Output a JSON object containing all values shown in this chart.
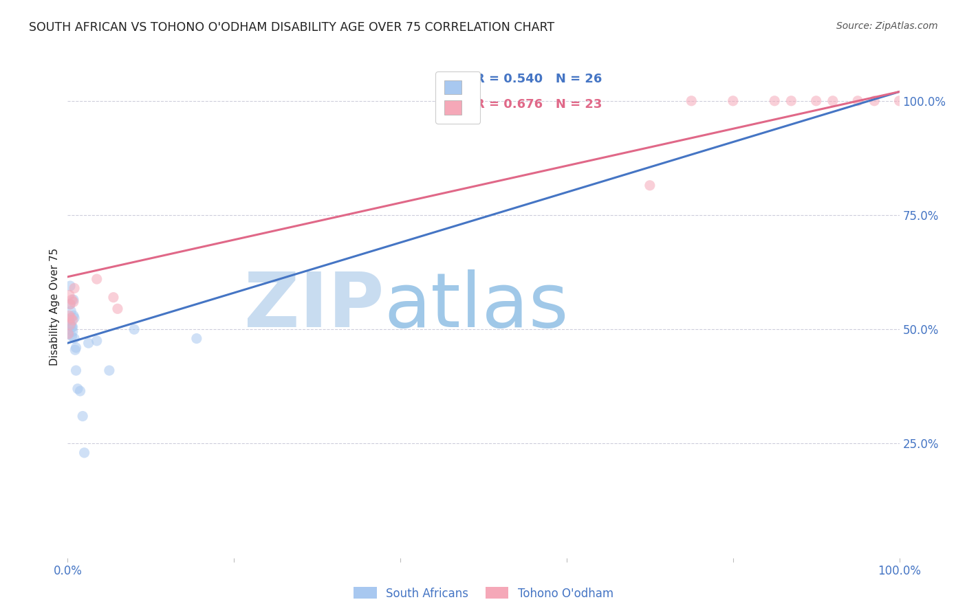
{
  "title": "SOUTH AFRICAN VS TOHONO O'ODHAM DISABILITY AGE OVER 75 CORRELATION CHART",
  "source": "Source: ZipAtlas.com",
  "ylabel": "Disability Age Over 75",
  "legend_blue_r": "R = 0.540",
  "legend_blue_n": "N = 26",
  "legend_pink_r": "R = 0.676",
  "legend_pink_n": "N = 23",
  "legend_blue_label": "South Africans",
  "legend_pink_label": "Tohono O'odham",
  "watermark_part1": "ZIP",
  "watermark_part2": "atlas",
  "blue_scatter_x": [
    0.001,
    0.002,
    0.003,
    0.003,
    0.004,
    0.004,
    0.005,
    0.005,
    0.006,
    0.006,
    0.007,
    0.007,
    0.008,
    0.008,
    0.009,
    0.01,
    0.01,
    0.012,
    0.015,
    0.018,
    0.02,
    0.025,
    0.035,
    0.05,
    0.08,
    0.155
  ],
  "blue_scatter_y": [
    0.49,
    0.52,
    0.555,
    0.595,
    0.54,
    0.51,
    0.505,
    0.485,
    0.505,
    0.495,
    0.53,
    0.565,
    0.525,
    0.48,
    0.455,
    0.46,
    0.41,
    0.37,
    0.365,
    0.31,
    0.23,
    0.47,
    0.475,
    0.41,
    0.5,
    0.48
  ],
  "pink_scatter_x": [
    0.001,
    0.002,
    0.002,
    0.003,
    0.003,
    0.004,
    0.005,
    0.006,
    0.007,
    0.008,
    0.035,
    0.055,
    0.06,
    0.7,
    0.75,
    0.8,
    0.85,
    0.87,
    0.9,
    0.92,
    0.95,
    0.97,
    1.0
  ],
  "pink_scatter_y": [
    0.49,
    0.53,
    0.575,
    0.51,
    0.555,
    0.525,
    0.565,
    0.52,
    0.56,
    0.59,
    0.61,
    0.57,
    0.545,
    0.815,
    1.0,
    1.0,
    1.0,
    1.0,
    1.0,
    1.0,
    1.0,
    1.0,
    1.0
  ],
  "blue_line_x": [
    0.0,
    1.0
  ],
  "blue_line_y": [
    0.47,
    1.02
  ],
  "pink_line_x": [
    0.0,
    1.0
  ],
  "pink_line_y": [
    0.615,
    1.02
  ],
  "xlim": [
    0.0,
    1.0
  ],
  "ylim": [
    0.0,
    1.1
  ],
  "yticks": [
    0.25,
    0.5,
    0.75,
    1.0
  ],
  "ytick_labels": [
    "25.0%",
    "50.0%",
    "75.0%",
    "100.0%"
  ],
  "xticks": [
    0.0,
    0.2,
    0.4,
    0.6,
    0.8,
    1.0
  ],
  "xtick_labels": [
    "0.0%",
    "",
    "",
    "",
    "",
    "100.0%"
  ],
  "blue_color": "#A8C8F0",
  "pink_color": "#F5A8B8",
  "blue_line_color": "#4575C4",
  "pink_line_color": "#E06888",
  "grid_color": "#C8C8D8",
  "background_color": "#FFFFFF",
  "title_color": "#222222",
  "axis_label_color": "#4575C4",
  "watermark_color1": "#C8DCF0",
  "watermark_color2": "#A0C8E8",
  "title_fontsize": 12.5,
  "source_fontsize": 10,
  "legend_fontsize": 13,
  "axis_tick_fontsize": 12,
  "ylabel_fontsize": 11,
  "scatter_size": 120,
  "scatter_alpha": 0.55,
  "line_width": 2.2
}
